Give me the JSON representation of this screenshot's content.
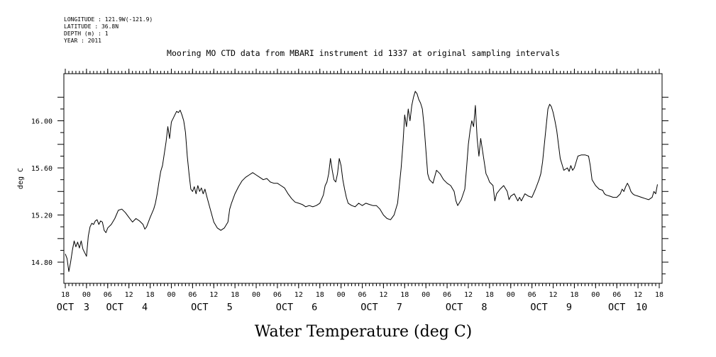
{
  "header": {
    "longitude": "LONGITUDE : 121.9W(-121.9)",
    "latitude": "LATITUDE : 36.8N",
    "depth": "DEPTH (m) : 1",
    "year": "YEAR : 2011"
  },
  "chart_data": {
    "type": "line",
    "title": "Mooring MO CTD data from MBARI instrument id 1337 at original sampling intervals",
    "xlabel": "Water Temperature (deg C)",
    "ylabel": "deg C",
    "ylim": [
      14.62,
      16.4
    ],
    "yticks": [
      14.8,
      15.2,
      15.6,
      16.0
    ],
    "ytick_labels": [
      "14.80",
      "15.20",
      "15.60",
      "16.00"
    ],
    "xlim_hours": [
      0,
      168
    ],
    "x_unit": "hours after 2011-10-03 18:00",
    "xtick_labels": [
      "18",
      "00",
      "06",
      "12",
      "18",
      "00",
      "06",
      "12",
      "18",
      "00",
      "06",
      "12",
      "18",
      "00",
      "06",
      "12",
      "18",
      "00",
      "06",
      "12",
      "18",
      "00",
      "06",
      "12",
      "18",
      "00",
      "06",
      "12",
      "18"
    ],
    "date_labels": [
      {
        "text": "OCT",
        "hour": 0
      },
      {
        "text": "3",
        "hour": 6
      },
      {
        "text": "OCT",
        "hour": 14
      },
      {
        "text": "4",
        "hour": 22.5
      },
      {
        "text": "OCT",
        "hour": 38
      },
      {
        "text": "5",
        "hour": 46.5
      },
      {
        "text": "OCT",
        "hour": 62
      },
      {
        "text": "6",
        "hour": 70.5
      },
      {
        "text": "OCT",
        "hour": 86
      },
      {
        "text": "7",
        "hour": 94.5
      },
      {
        "text": "OCT",
        "hour": 110
      },
      {
        "text": "8",
        "hour": 118.5
      },
      {
        "text": "OCT",
        "hour": 134
      },
      {
        "text": "9",
        "hour": 142.5
      },
      {
        "text": "OCT",
        "hour": 156
      },
      {
        "text": "10",
        "hour": 163
      }
    ],
    "grid": false,
    "series": [
      {
        "color": "#000000",
        "points": [
          [
            0,
            14.87
          ],
          [
            0.5,
            14.83
          ],
          [
            1,
            14.72
          ],
          [
            1.5,
            14.8
          ],
          [
            2,
            14.9
          ],
          [
            2.5,
            14.98
          ],
          [
            3,
            14.93
          ],
          [
            3.5,
            14.97
          ],
          [
            4,
            14.92
          ],
          [
            4.5,
            14.98
          ],
          [
            5,
            14.91
          ],
          [
            5.5,
            14.88
          ],
          [
            6,
            14.85
          ],
          [
            6.5,
            15.02
          ],
          [
            7,
            15.1
          ],
          [
            7.5,
            15.13
          ],
          [
            8,
            15.12
          ],
          [
            8.5,
            15.15
          ],
          [
            9,
            15.16
          ],
          [
            9.5,
            15.12
          ],
          [
            10,
            15.15
          ],
          [
            10.5,
            15.14
          ],
          [
            11,
            15.07
          ],
          [
            11.5,
            15.05
          ],
          [
            12,
            15.09
          ],
          [
            13,
            15.12
          ],
          [
            14,
            15.17
          ],
          [
            15,
            15.24
          ],
          [
            16,
            15.25
          ],
          [
            17,
            15.22
          ],
          [
            18,
            15.18
          ],
          [
            19,
            15.14
          ],
          [
            20,
            15.17
          ],
          [
            21,
            15.15
          ],
          [
            22,
            15.12
          ],
          [
            22.5,
            15.08
          ],
          [
            23,
            15.1
          ],
          [
            24,
            15.18
          ],
          [
            25,
            15.25
          ],
          [
            25.5,
            15.3
          ],
          [
            26,
            15.38
          ],
          [
            26.5,
            15.48
          ],
          [
            27,
            15.57
          ],
          [
            27.5,
            15.62
          ],
          [
            28,
            15.72
          ],
          [
            28.5,
            15.82
          ],
          [
            29,
            15.95
          ],
          [
            29.5,
            15.85
          ],
          [
            30,
            15.99
          ],
          [
            30.5,
            16.02
          ],
          [
            31,
            16.05
          ],
          [
            31.5,
            16.08
          ],
          [
            32,
            16.07
          ],
          [
            32.5,
            16.09
          ],
          [
            33,
            16.05
          ],
          [
            33.5,
            16.0
          ],
          [
            34,
            15.9
          ],
          [
            34.5,
            15.7
          ],
          [
            35,
            15.55
          ],
          [
            35.5,
            15.42
          ],
          [
            36,
            15.4
          ],
          [
            36.5,
            15.44
          ],
          [
            37,
            15.38
          ],
          [
            37.5,
            15.45
          ],
          [
            38,
            15.4
          ],
          [
            38.5,
            15.43
          ],
          [
            39,
            15.38
          ],
          [
            39.5,
            15.42
          ],
          [
            40,
            15.36
          ],
          [
            41,
            15.25
          ],
          [
            42,
            15.14
          ],
          [
            43,
            15.09
          ],
          [
            44,
            15.07
          ],
          [
            45,
            15.09
          ],
          [
            46,
            15.14
          ],
          [
            46.5,
            15.25
          ],
          [
            47,
            15.3
          ],
          [
            48,
            15.38
          ],
          [
            49,
            15.44
          ],
          [
            50,
            15.49
          ],
          [
            51,
            15.52
          ],
          [
            52,
            15.54
          ],
          [
            53,
            15.56
          ],
          [
            54,
            15.54
          ],
          [
            55,
            15.52
          ],
          [
            56,
            15.5
          ],
          [
            57,
            15.51
          ],
          [
            58,
            15.48
          ],
          [
            59,
            15.47
          ],
          [
            60,
            15.47
          ],
          [
            61,
            15.45
          ],
          [
            62,
            15.43
          ],
          [
            63,
            15.38
          ],
          [
            64,
            15.34
          ],
          [
            65,
            15.31
          ],
          [
            66,
            15.3
          ],
          [
            67,
            15.29
          ],
          [
            68,
            15.27
          ],
          [
            69,
            15.28
          ],
          [
            70,
            15.27
          ],
          [
            71,
            15.28
          ],
          [
            72,
            15.3
          ],
          [
            73,
            15.37
          ],
          [
            73.5,
            15.45
          ],
          [
            74,
            15.48
          ],
          [
            74.5,
            15.55
          ],
          [
            75,
            15.68
          ],
          [
            75.5,
            15.58
          ],
          [
            76,
            15.5
          ],
          [
            76.5,
            15.48
          ],
          [
            77,
            15.55
          ],
          [
            77.5,
            15.68
          ],
          [
            78,
            15.62
          ],
          [
            78.5,
            15.5
          ],
          [
            79,
            15.42
          ],
          [
            79.5,
            15.35
          ],
          [
            80,
            15.3
          ],
          [
            81,
            15.28
          ],
          [
            82,
            15.27
          ],
          [
            83,
            15.3
          ],
          [
            84,
            15.28
          ],
          [
            85,
            15.3
          ],
          [
            86,
            15.29
          ],
          [
            87,
            15.28
          ],
          [
            88,
            15.28
          ],
          [
            89,
            15.25
          ],
          [
            90,
            15.2
          ],
          [
            91,
            15.17
          ],
          [
            92,
            15.16
          ],
          [
            93,
            15.2
          ],
          [
            94,
            15.3
          ],
          [
            94.5,
            15.45
          ],
          [
            95,
            15.6
          ],
          [
            95.5,
            15.8
          ],
          [
            96,
            16.05
          ],
          [
            96.5,
            15.95
          ],
          [
            97,
            16.1
          ],
          [
            97.5,
            16.0
          ],
          [
            98,
            16.13
          ],
          [
            98.5,
            16.2
          ],
          [
            99,
            16.25
          ],
          [
            99.5,
            16.23
          ],
          [
            100,
            16.18
          ],
          [
            100.5,
            16.15
          ],
          [
            101,
            16.1
          ],
          [
            101.5,
            15.95
          ],
          [
            102,
            15.75
          ],
          [
            102.5,
            15.55
          ],
          [
            103,
            15.5
          ],
          [
            104,
            15.47
          ],
          [
            105,
            15.58
          ],
          [
            106,
            15.55
          ],
          [
            107,
            15.5
          ],
          [
            108,
            15.47
          ],
          [
            109,
            15.45
          ],
          [
            110,
            15.4
          ],
          [
            110.5,
            15.32
          ],
          [
            111,
            15.28
          ],
          [
            112,
            15.33
          ],
          [
            113,
            15.42
          ],
          [
            113.5,
            15.6
          ],
          [
            114,
            15.8
          ],
          [
            114.5,
            15.92
          ],
          [
            115,
            16.0
          ],
          [
            115.5,
            15.95
          ],
          [
            116,
            16.13
          ],
          [
            116.5,
            15.85
          ],
          [
            117,
            15.7
          ],
          [
            117.5,
            15.85
          ],
          [
            118,
            15.75
          ],
          [
            118.5,
            15.65
          ],
          [
            119,
            15.55
          ],
          [
            119.5,
            15.52
          ],
          [
            120,
            15.48
          ],
          [
            121,
            15.45
          ],
          [
            121.5,
            15.32
          ],
          [
            122,
            15.38
          ],
          [
            123,
            15.42
          ],
          [
            124,
            15.45
          ],
          [
            125,
            15.4
          ],
          [
            125.5,
            15.33
          ],
          [
            126,
            15.36
          ],
          [
            127,
            15.38
          ],
          [
            128,
            15.32
          ],
          [
            128.5,
            15.35
          ],
          [
            129,
            15.32
          ],
          [
            130,
            15.38
          ],
          [
            131,
            15.36
          ],
          [
            132,
            15.35
          ],
          [
            133,
            15.42
          ],
          [
            134,
            15.5
          ],
          [
            134.5,
            15.55
          ],
          [
            135,
            15.65
          ],
          [
            135.5,
            15.8
          ],
          [
            136,
            15.95
          ],
          [
            136.5,
            16.1
          ],
          [
            137,
            16.14
          ],
          [
            137.5,
            16.12
          ],
          [
            138,
            16.07
          ],
          [
            138.5,
            16.0
          ],
          [
            139,
            15.92
          ],
          [
            139.5,
            15.8
          ],
          [
            140,
            15.68
          ],
          [
            140.5,
            15.63
          ],
          [
            141,
            15.58
          ],
          [
            142,
            15.6
          ],
          [
            142.5,
            15.57
          ],
          [
            143,
            15.62
          ],
          [
            143.5,
            15.58
          ],
          [
            144,
            15.6
          ],
          [
            145,
            15.7
          ],
          [
            146,
            15.71
          ],
          [
            147,
            15.71
          ],
          [
            148,
            15.7
          ],
          [
            148.5,
            15.62
          ],
          [
            149,
            15.5
          ],
          [
            150,
            15.45
          ],
          [
            151,
            15.42
          ],
          [
            152,
            15.41
          ],
          [
            152.5,
            15.38
          ],
          [
            153,
            15.37
          ],
          [
            154,
            15.36
          ],
          [
            155,
            15.35
          ],
          [
            156,
            15.35
          ],
          [
            157,
            15.38
          ],
          [
            157.5,
            15.42
          ],
          [
            158,
            15.4
          ],
          [
            158.5,
            15.44
          ],
          [
            159,
            15.47
          ],
          [
            159.5,
            15.44
          ],
          [
            160,
            15.4
          ],
          [
            160.5,
            15.38
          ],
          [
            161,
            15.37
          ],
          [
            162,
            15.36
          ],
          [
            163,
            15.35
          ],
          [
            164,
            15.34
          ],
          [
            165,
            15.33
          ],
          [
            166,
            15.35
          ],
          [
            166.5,
            15.4
          ],
          [
            167,
            15.38
          ],
          [
            167.5,
            15.46
          ]
        ]
      }
    ]
  }
}
